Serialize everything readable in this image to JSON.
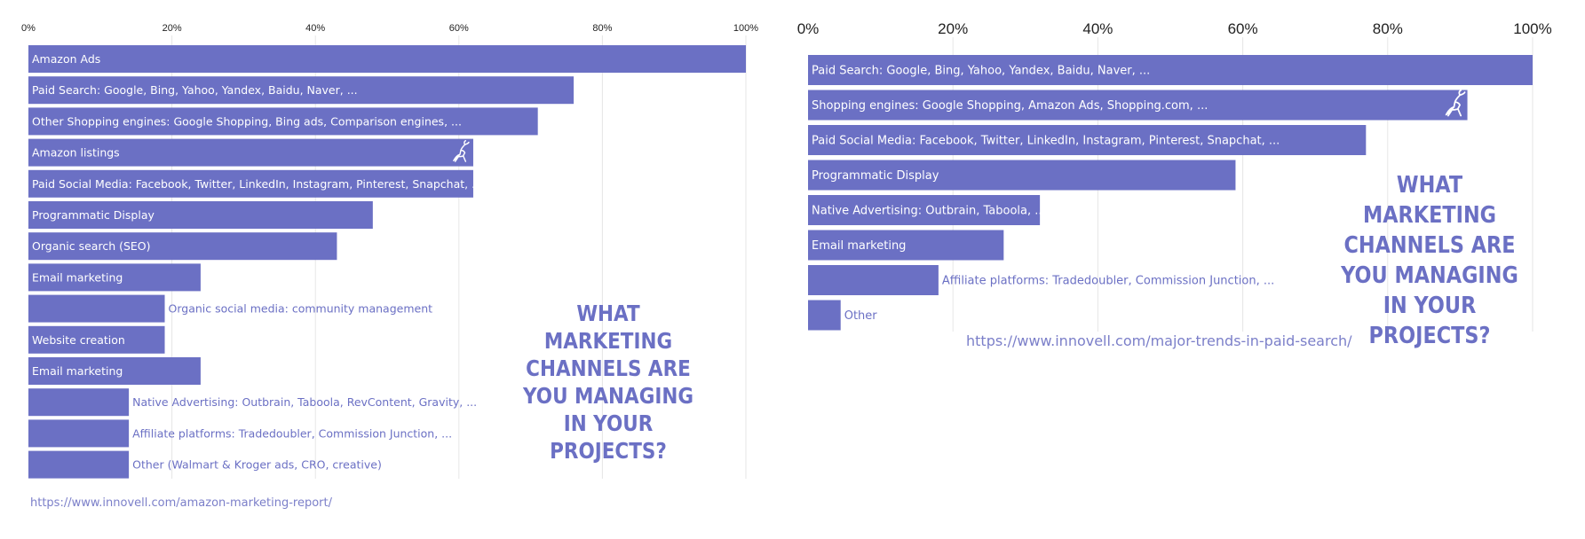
{
  "chart_data": [
    {
      "type": "bar",
      "orientation": "horizontal",
      "title": "WHAT MARKETING CHANNELS ARE YOU MANAGING IN YOUR PROJECTS?",
      "source": "https://www.innovell.com/amazon-marketing-report/",
      "xlim": [
        0,
        100
      ],
      "x_ticks": [
        "0%",
        "20%",
        "40%",
        "60%",
        "80%",
        "100%"
      ],
      "grid": true,
      "categories": [
        "Amazon Ads",
        "Paid Search: Google, Bing, Yahoo, Yandex, Baidu, Naver, ...",
        "Other Shopping engines: Google Shopping, Bing ads, Comparison engines, ...",
        "Amazon listings",
        "Paid Social Media: Facebook, Twitter, LinkedIn, Instagram, Pinterest, Snapchat, ...",
        "Programmatic Display",
        "Organic search (SEO)",
        "Email marketing",
        "Organic social media: community management",
        "Website creation",
        "Email marketing",
        "Native Advertising: Outbrain, Taboola, RevContent, Gravity, ...",
        "Affiliate platforms: Tradedoubler, Commission Junction, ...",
        "Other (Walmart & Kroger ads, CRO, creative)"
      ],
      "values": [
        100,
        76,
        71,
        62,
        62,
        48,
        43,
        24,
        19,
        19,
        24,
        14,
        14,
        14
      ],
      "label_outside": [
        false,
        false,
        false,
        false,
        false,
        false,
        false,
        false,
        true,
        false,
        false,
        true,
        true,
        true
      ],
      "logo_on_category": "Amazon listings"
    },
    {
      "type": "bar",
      "orientation": "horizontal",
      "title": "WHAT MARKETING CHANNELS ARE YOU MANAGING IN YOUR PROJECTS?",
      "source": "https://www.innovell.com/major-trends-in-paid-search/",
      "xlim": [
        0,
        100
      ],
      "x_ticks": [
        "0%",
        "20%",
        "40%",
        "60%",
        "80%",
        "100%"
      ],
      "grid": true,
      "categories": [
        "Paid Search: Google, Bing, Yahoo, Yandex, Baidu, Naver, ...",
        "Shopping engines: Google Shopping, Amazon Ads, Shopping.com, ...",
        "Paid Social Media: Facebook, Twitter, LinkedIn, Instagram, Pinterest, Snapchat, ...",
        "Programmatic Display",
        "Native Advertising: Outbrain, Taboola, ...",
        "Email marketing",
        "Affiliate platforms: Tradedoubler, Commission Junction, ...",
        "Other"
      ],
      "values": [
        100,
        91,
        77,
        59,
        32,
        27,
        18,
        4.5
      ],
      "label_outside": [
        false,
        false,
        false,
        false,
        false,
        false,
        true,
        true
      ],
      "logo_on_category": "Shopping engines: Google Shopping, Amazon Ads, Shopping.com, ..."
    }
  ]
}
